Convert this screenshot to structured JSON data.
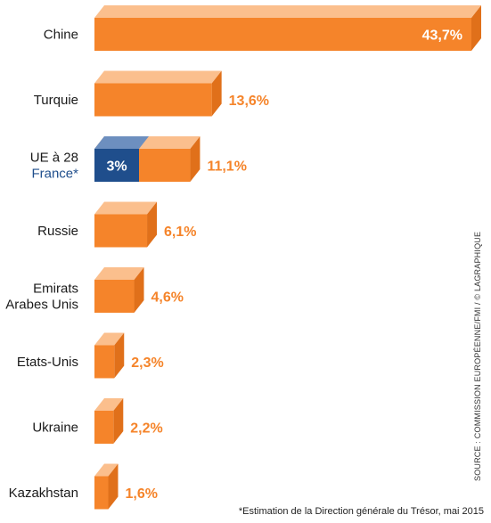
{
  "chart_data": {
    "type": "bar",
    "orientation": "horizontal",
    "categories": [
      "Chine",
      "Turquie",
      "UE à 28",
      "Russie",
      "Emirats Arabes Unis",
      "Etats-Unis",
      "Ukraine",
      "Kazakhstan"
    ],
    "values": [
      43.7,
      13.6,
      11.1,
      6.1,
      4.6,
      2.3,
      2.2,
      1.6
    ],
    "value_labels": [
      "43,7%",
      "13,6%",
      "11,1%",
      "6,1%",
      "4,6%",
      "2,3%",
      "2,2%",
      "1,6%"
    ],
    "sub_bar": {
      "category_index": 2,
      "label": "France*",
      "value": 3,
      "value_label": "3%"
    },
    "colors": {
      "bar_front": "#f5842a",
      "bar_top": "#fbbf8d",
      "bar_side": "#e0701a",
      "sub_bar_front": "#1f4e8c",
      "sub_bar_top": "#6d8fbf",
      "value_label": "#f5842a",
      "value_label_inside": "#ffffff"
    }
  },
  "source": "SOURCE : COMMISSION EUROPÉENNE/FMI / © LAGRAPHIQUE",
  "footnote": "*Estimation de la Direction générale du Trésor, mai 2015"
}
